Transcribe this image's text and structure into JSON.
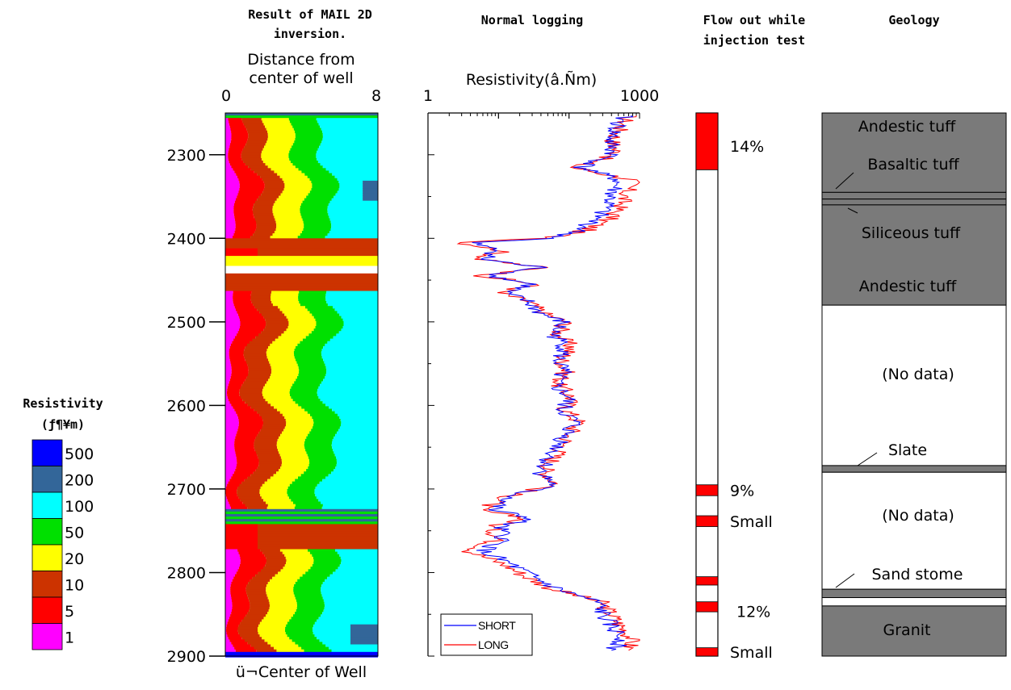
{
  "panels": {
    "inversion": {
      "title_line1": "Result of MAIL 2D",
      "title_line2": "inversion.",
      "subtitle_line1": "Distance from",
      "subtitle_line2": "center of well",
      "x_min_label": "0",
      "x_max_label": "8",
      "bottom_label": "ü¬Center of Well"
    },
    "logging": {
      "title": "Normal logging",
      "axis_label": "Resistivity(â.Ñm)",
      "x_min_label": "1",
      "x_max_label": "1000"
    },
    "flow": {
      "title_line1": "Flow out while",
      "title_line2": "injection test"
    },
    "geology": {
      "title": "Geology"
    }
  },
  "depth_axis": {
    "ticks": [
      "2300",
      "2400",
      "2500",
      "2600",
      "2700",
      "2800",
      "2900"
    ]
  },
  "legend": {
    "title_line1": "Resistivity",
    "title_line2": "(ƒ¶¥m)",
    "entries": [
      {
        "label": "500",
        "color": "#0000ff"
      },
      {
        "label": "200",
        "color": "#336699"
      },
      {
        "label": "100",
        "color": "#00ffff"
      },
      {
        "label": "50",
        "color": "#00e000"
      },
      {
        "label": "20",
        "color": "#ffff00"
      },
      {
        "label": "10",
        "color": "#cc3300"
      },
      {
        "label": "5",
        "color": "#ff0000"
      },
      {
        "label": "1",
        "color": "#ff00ff"
      }
    ]
  },
  "chart_data": [
    {
      "type": "heatmap",
      "title": "Result of MAIL 2D inversion.",
      "xlabel": "Distance from center of well",
      "xlim": [
        0,
        8
      ],
      "ylim": [
        2250,
        2900
      ],
      "y_ticks": [
        2300,
        2400,
        2500,
        2600,
        2700,
        2800,
        2900
      ],
      "legend_title": "Resistivity",
      "color_classes": [
        500,
        200,
        100,
        50,
        20,
        10,
        5,
        1
      ]
    },
    {
      "type": "line",
      "title": "Normal logging",
      "xlabel": "Resistivity(â.Ñm)",
      "x_scale": "log",
      "xlim": [
        1,
        1000
      ],
      "ylim": [
        2250,
        2900
      ],
      "series": [
        {
          "name": "SHORT",
          "color": "#0000ff",
          "depth": [
            2253,
            2270,
            2285,
            2300,
            2315,
            2330,
            2345,
            2360,
            2375,
            2390,
            2400,
            2405,
            2415,
            2425,
            2435,
            2445,
            2455,
            2465,
            2475,
            2490,
            2500,
            2515,
            2530,
            2545,
            2560,
            2575,
            2590,
            2605,
            2620,
            2635,
            2650,
            2665,
            2680,
            2695,
            2705,
            2715,
            2725,
            2735,
            2745,
            2760,
            2775,
            2790,
            2805,
            2820,
            2835,
            2850,
            2865,
            2880,
            2893
          ],
          "values": [
            600,
            450,
            380,
            420,
            150,
            500,
            420,
            350,
            250,
            150,
            60,
            4,
            10,
            6,
            40,
            8,
            30,
            12,
            25,
            40,
            80,
            60,
            90,
            70,
            80,
            60,
            100,
            80,
            120,
            90,
            70,
            50,
            40,
            60,
            20,
            12,
            8,
            30,
            10,
            12,
            6,
            15,
            30,
            70,
            250,
            300,
            400,
            600,
            400
          ]
        },
        {
          "name": "LONG",
          "color": "#ff0000",
          "depth": [
            2253,
            2270,
            2285,
            2300,
            2315,
            2330,
            2345,
            2360,
            2375,
            2390,
            2400,
            2405,
            2415,
            2425,
            2435,
            2445,
            2455,
            2465,
            2475,
            2490,
            2500,
            2515,
            2530,
            2545,
            2560,
            2575,
            2590,
            2605,
            2620,
            2635,
            2650,
            2665,
            2680,
            2695,
            2705,
            2715,
            2725,
            2735,
            2745,
            2760,
            2775,
            2790,
            2805,
            2820,
            2835,
            2850,
            2865,
            2880,
            2893
          ],
          "values": [
            700,
            520,
            420,
            480,
            110,
            800,
            650,
            550,
            400,
            180,
            50,
            3,
            12,
            5,
            45,
            6,
            35,
            10,
            25,
            45,
            90,
            70,
            110,
            80,
            90,
            70,
            110,
            90,
            140,
            100,
            80,
            60,
            45,
            70,
            18,
            10,
            5,
            25,
            8,
            10,
            4,
            12,
            25,
            60,
            280,
            400,
            550,
            800,
            700
          ]
        }
      ]
    },
    {
      "type": "bar",
      "title": "Flow out while injection test",
      "ylim": [
        2250,
        2900
      ],
      "intervals": [
        {
          "top": 2250,
          "bottom": 2318,
          "label": "14%"
        },
        {
          "top": 2695,
          "bottom": 2708,
          "label": "9%"
        },
        {
          "top": 2732,
          "bottom": 2745,
          "label": "Small"
        },
        {
          "top": 2805,
          "bottom": 2815,
          "label": ""
        },
        {
          "top": 2835,
          "bottom": 2847,
          "label": "12%"
        },
        {
          "top": 2890,
          "bottom": 2900,
          "label": "Small"
        }
      ]
    },
    {
      "type": "table",
      "title": "Geology",
      "ylim": [
        2250,
        2900
      ],
      "layers": [
        {
          "top": 2250,
          "bottom": 2345,
          "name": "Andestic tuff"
        },
        {
          "top": 2345,
          "bottom": 2353,
          "name": "Basaltic tuff"
        },
        {
          "top": 2353,
          "bottom": 2360,
          "name": ""
        },
        {
          "top": 2360,
          "bottom": 2480,
          "name": "Siliceous tuff"
        },
        {
          "top": 2480,
          "bottom": 2672,
          "name": "(No data)"
        },
        {
          "top": 2672,
          "bottom": 2680,
          "name": "Slate"
        },
        {
          "top": 2680,
          "bottom": 2820,
          "name": "(No data)"
        },
        {
          "top": 2820,
          "bottom": 2830,
          "name": "Sand stome"
        },
        {
          "top": 2830,
          "bottom": 2840,
          "name": ""
        },
        {
          "top": 2840,
          "bottom": 2900,
          "name": "Granit"
        }
      ],
      "extra_labels": [
        "Andestic tuff"
      ]
    }
  ]
}
